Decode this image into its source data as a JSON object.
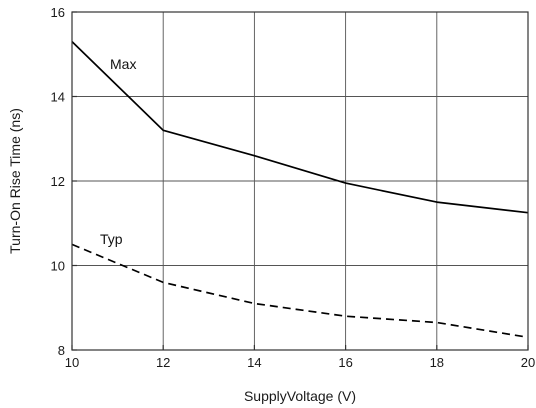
{
  "chart_data": {
    "type": "line",
    "xlabel": "SupplyVoltage (V)",
    "ylabel": "Turn-On Rise Time (ns)",
    "xlim": [
      10,
      20
    ],
    "ylim": [
      8,
      16
    ],
    "xticks": [
      "10",
      "12",
      "14",
      "16",
      "18",
      "20"
    ],
    "yticks": [
      "8",
      "10",
      "12",
      "14",
      "16"
    ],
    "grid": true,
    "series": [
      {
        "name": "Max",
        "style": "solid",
        "color": "#000000",
        "x": [
          10,
          12,
          14,
          16,
          18,
          20
        ],
        "y": [
          15.3,
          13.2,
          12.6,
          11.95,
          11.5,
          11.25
        ]
      },
      {
        "name": "Typ",
        "style": "dashed",
        "color": "#000000",
        "x": [
          10,
          12,
          14,
          16,
          18,
          20
        ],
        "y": [
          10.5,
          9.6,
          9.1,
          8.8,
          8.65,
          8.3
        ]
      }
    ]
  }
}
